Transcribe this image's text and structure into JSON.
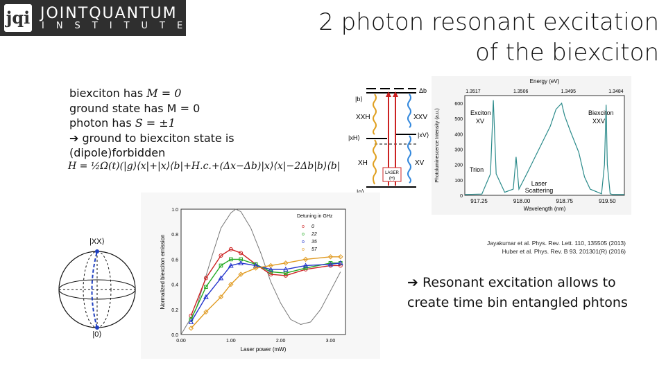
{
  "logo": {
    "mark": "jqi",
    "line1": "JOINTQUANTUM",
    "line2": "INSTITUTE"
  },
  "title": {
    "line1": "2 photon resonant excitation",
    "line2": "of the biexciton"
  },
  "bullets": [
    {
      "pre": "biexciton has ",
      "math": "M = 0"
    },
    {
      "pre": "ground state has M = 0",
      "math": ""
    },
    {
      "pre": "photon has ",
      "math": "S = ±1"
    },
    {
      "arrow": "➔",
      "text": "ground to biexciton state is (dipole)forbidden"
    }
  ],
  "hamiltonian": "H = ½Ω(t)(|g⟩⟨x|+|x⟩⟨b|+H.c.+(Δx−Δb)|x⟩⟨x|−2Δb|b⟩⟨b|",
  "level_diagram": {
    "b": "|b⟩",
    "xh": "|xH⟩",
    "xv": "|xV⟩",
    "g": "|g⟩",
    "delta_b": "Δb",
    "XXH": "XXH",
    "XXV": "XXV",
    "XH": "XH",
    "XV": "XV",
    "laser": "LASER",
    "laser_pol": "(H)"
  },
  "bloch": {
    "top": "|XX⟩",
    "bottom": "|0⟩"
  },
  "references": {
    "line1": "Jayakumar et al. Phys. Rev. Lett. 110, 135505 (2013)",
    "line2": "Huber et al. Phys. Rev. B 93, 201301(R) (2016)"
  },
  "conclusion": {
    "arrow": "➔",
    "text": "Resonant excitation allows to create time bin entangled phtons"
  },
  "chart_data": [
    {
      "type": "line",
      "title": "",
      "xlabel": "Wavelength (nm)",
      "ylabel": "Photoluminescence Intensity (a.u.)",
      "top_axis_label": "Energy (eV)",
      "top_ticks": [
        "1.3517",
        "1.3506",
        "1.3495",
        "1.3484"
      ],
      "x_ticks": [
        "917.25",
        "918.00",
        "918.75",
        "919.50"
      ],
      "y_ticks": [
        "0",
        "100",
        "200",
        "300",
        "400",
        "500",
        "600"
      ],
      "xlim": [
        917.0,
        919.8
      ],
      "ylim": [
        0,
        650
      ],
      "annotations": [
        "Exciton",
        "XV",
        "Trion",
        "Biexciton",
        "XXV",
        "Laser",
        "Scattering"
      ],
      "series": [
        {
          "x": [
            917.0,
            917.3,
            917.45,
            917.5,
            917.55,
            917.7,
            917.85,
            917.9,
            917.95,
            918.1,
            918.3,
            918.5,
            918.6,
            918.7,
            918.75,
            918.85,
            919.0,
            919.1,
            919.2,
            919.4,
            919.45,
            919.48,
            919.5,
            919.55,
            919.6,
            919.8
          ],
          "values": [
            5,
            8,
            140,
            620,
            140,
            20,
            40,
            250,
            40,
            150,
            300,
            450,
            560,
            600,
            520,
            420,
            280,
            120,
            40,
            10,
            200,
            590,
            200,
            10,
            5,
            5
          ]
        }
      ]
    },
    {
      "type": "scatter",
      "title": "",
      "xlabel": "Laser power (mW)",
      "ylabel": "Normalized biexciton emission",
      "legend_title": "Detuning in GHz",
      "x_ticks": [
        "0.00",
        "1.00",
        "2.00",
        "3.00"
      ],
      "y_ticks": [
        "0.0",
        "0.2",
        "0.4",
        "0.6",
        "0.8",
        "1.0"
      ],
      "xlim": [
        0,
        3.3
      ],
      "ylim": [
        0,
        1.0
      ],
      "series": [
        {
          "name": "0",
          "color": "#cc2222",
          "x": [
            0.2,
            0.5,
            0.8,
            1.0,
            1.2,
            1.5,
            1.8,
            2.1,
            2.5,
            3.0,
            3.2
          ],
          "values": [
            0.15,
            0.45,
            0.63,
            0.68,
            0.65,
            0.56,
            0.48,
            0.47,
            0.52,
            0.55,
            0.55
          ]
        },
        {
          "name": "22",
          "color": "#22aa22",
          "x": [
            0.2,
            0.5,
            0.8,
            1.0,
            1.2,
            1.5,
            1.8,
            2.1,
            2.5,
            3.0,
            3.2
          ],
          "values": [
            0.12,
            0.38,
            0.55,
            0.6,
            0.6,
            0.56,
            0.5,
            0.49,
            0.53,
            0.57,
            0.57
          ]
        },
        {
          "name": "35",
          "color": "#2233cc",
          "x": [
            0.2,
            0.5,
            0.8,
            1.0,
            1.2,
            1.5,
            1.8,
            2.1,
            2.5,
            3.0,
            3.2
          ],
          "values": [
            0.1,
            0.3,
            0.45,
            0.55,
            0.57,
            0.55,
            0.52,
            0.52,
            0.55,
            0.56,
            0.57
          ]
        },
        {
          "name": "57",
          "color": "#e09a20",
          "x": [
            0.2,
            0.5,
            0.8,
            1.0,
            1.2,
            1.5,
            1.8,
            2.1,
            2.5,
            3.0,
            3.2
          ],
          "values": [
            0.05,
            0.18,
            0.3,
            0.4,
            0.48,
            0.53,
            0.55,
            0.57,
            0.6,
            0.62,
            0.62
          ]
        }
      ],
      "reference_curve": {
        "x": [
          0,
          0.3,
          0.6,
          0.8,
          1.0,
          1.1,
          1.2,
          1.4,
          1.6,
          1.8,
          2.0,
          2.2,
          2.4,
          2.6,
          2.8,
          3.0,
          3.2
        ],
        "values": [
          0.0,
          0.2,
          0.6,
          0.85,
          0.97,
          1.0,
          0.98,
          0.85,
          0.65,
          0.42,
          0.25,
          0.12,
          0.08,
          0.1,
          0.2,
          0.35,
          0.5
        ]
      }
    }
  ]
}
